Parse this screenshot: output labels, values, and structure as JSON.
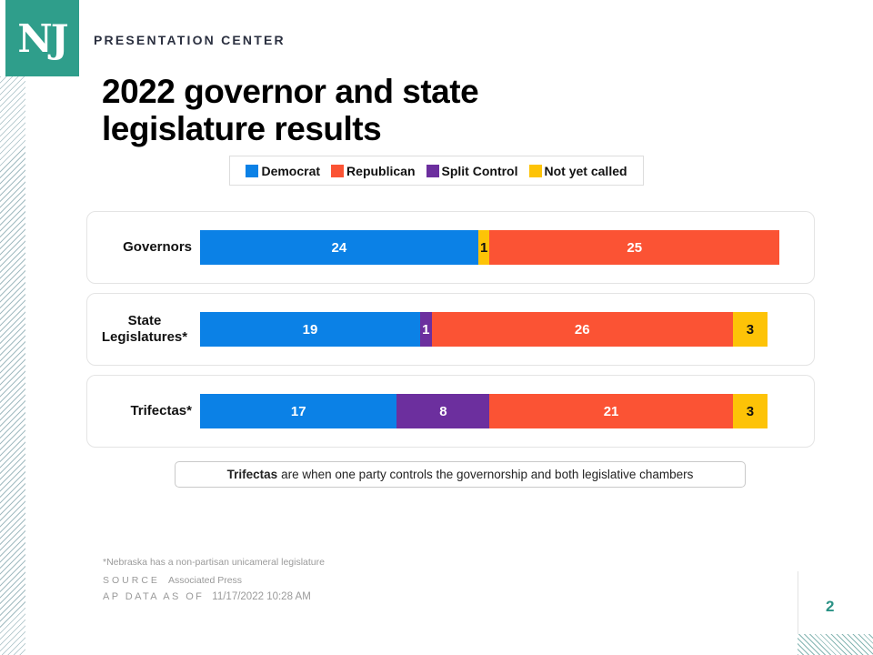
{
  "header": {
    "logo_text": "NJ",
    "brand": "PRESENTATION CENTER"
  },
  "title_lines": [
    "2022 governor and state",
    "legislature results"
  ],
  "chart_data": {
    "type": "bar",
    "orientation": "horizontal_stacked",
    "max_total": 50,
    "legend_position": "top",
    "legend": [
      {
        "label": "Democrat",
        "color": "#0b81e6"
      },
      {
        "label": "Republican",
        "color": "#fb5334"
      },
      {
        "label": "Split Control",
        "color": "#6c2f9e"
      },
      {
        "label": "Not yet called",
        "color": "#fdc307"
      }
    ],
    "rows": [
      {
        "label": "Governors",
        "segments": [
          {
            "party": "Democrat",
            "value": 24
          },
          {
            "party": "Not yet called",
            "value": 1
          },
          {
            "party": "Republican",
            "value": 25
          }
        ]
      },
      {
        "label": "State Legislatures*",
        "segments": [
          {
            "party": "Democrat",
            "value": 19
          },
          {
            "party": "Split Control",
            "value": 1
          },
          {
            "party": "Republican",
            "value": 26
          },
          {
            "party": "Not yet called",
            "value": 3
          }
        ]
      },
      {
        "label": "Trifectas*",
        "segments": [
          {
            "party": "Democrat",
            "value": 17
          },
          {
            "party": "Split Control",
            "value": 8
          },
          {
            "party": "Republican",
            "value": 21
          },
          {
            "party": "Not yet called",
            "value": 3
          }
        ]
      }
    ]
  },
  "note": {
    "bold": "Trifectas",
    "rest": " are when one party controls the governorship and both legislative chambers"
  },
  "footer": {
    "footnote": "*Nebraska has a non-partisan unicameral legislature",
    "source_label": "SOURCE",
    "source_value": "Associated Press",
    "asof_label": "AP DATA AS OF",
    "asof_value": "11/17/2022 10:28 AM"
  },
  "page_number": "2",
  "colors": {
    "accent_teal": "#2f9e8b",
    "dark_bar_value_on_yellow": "#111111",
    "light_bar_value": "#ffffff"
  }
}
